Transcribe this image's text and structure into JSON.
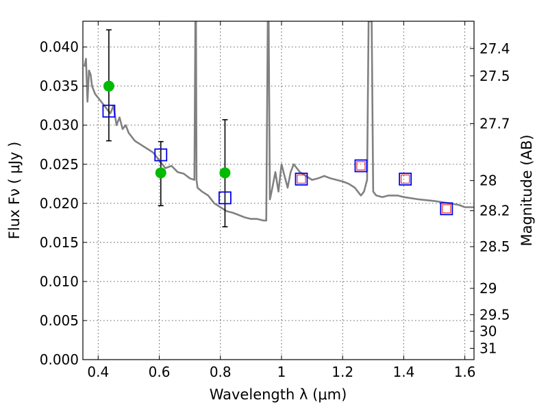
{
  "chart_data": {
    "type": "scatter",
    "title": "",
    "xlabel": "Wavelength  λ (μm)",
    "ylabel": "Flux  Fν  ( μJy )",
    "ylabel_right": "Magnitude (AB)",
    "xlim": [
      0.35,
      1.63
    ],
    "ylim": [
      0.0,
      0.0433
    ],
    "grid": true,
    "x_ticks": [
      0.4,
      0.6,
      0.8,
      1.0,
      1.2,
      1.4,
      1.6
    ],
    "x_tick_labels": [
      "0.4",
      "0.6",
      "0.8",
      "1",
      "1.2",
      "1.4",
      "1.6"
    ],
    "y_ticks": [
      0.0,
      0.005,
      0.01,
      0.015,
      0.02,
      0.025,
      0.03,
      0.035,
      0.04
    ],
    "y_tick_labels": [
      "0.000",
      "0.005",
      "0.010",
      "0.015",
      "0.020",
      "0.025",
      "0.030",
      "0.035",
      "0.040"
    ],
    "right_ticks": [
      27.4,
      27.5,
      27.7,
      28,
      28.2,
      28.5,
      29,
      29.5,
      30,
      31
    ],
    "right_tick_labels": [
      "27.4",
      "27.5",
      "27.7",
      "28",
      "28.2",
      "28.5",
      "29",
      "29.5",
      "30",
      "31"
    ],
    "colors": {
      "sed": "#808080",
      "observed": "#00bb00",
      "model_box": "#0000ee",
      "inner_box": "#ee3333",
      "errorbar": "#000000"
    },
    "series": [
      {
        "kind": "sed-line",
        "x": [
          0.355,
          0.36,
          0.365,
          0.37,
          0.375,
          0.38,
          0.39,
          0.4,
          0.41,
          0.42,
          0.43,
          0.44,
          0.45,
          0.46,
          0.47,
          0.48,
          0.49,
          0.5,
          0.52,
          0.54,
          0.56,
          0.58,
          0.6,
          0.62,
          0.64,
          0.66,
          0.68,
          0.7,
          0.715,
          0.718,
          0.72,
          0.722,
          0.725,
          0.74,
          0.76,
          0.78,
          0.8,
          0.82,
          0.84,
          0.86,
          0.88,
          0.9,
          0.92,
          0.94,
          0.95,
          0.955,
          0.958,
          0.962,
          0.965,
          0.97,
          0.98,
          0.99,
          1.0,
          1.01,
          1.02,
          1.03,
          1.04,
          1.05,
          1.06,
          1.08,
          1.1,
          1.12,
          1.14,
          1.16,
          1.18,
          1.2,
          1.22,
          1.24,
          1.26,
          1.27,
          1.28,
          1.285,
          1.29,
          1.295,
          1.3,
          1.31,
          1.33,
          1.35,
          1.38,
          1.4,
          1.45,
          1.5,
          1.55,
          1.58,
          1.6,
          1.63
        ],
        "y": [
          0.0375,
          0.0385,
          0.033,
          0.037,
          0.0365,
          0.035,
          0.034,
          0.0335,
          0.033,
          0.0325,
          0.032,
          0.0315,
          0.0325,
          0.03,
          0.031,
          0.0295,
          0.03,
          0.029,
          0.028,
          0.0275,
          0.027,
          0.0265,
          0.0255,
          0.0245,
          0.0248,
          0.024,
          0.0238,
          0.0232,
          0.023,
          0.0433,
          0.0433,
          0.023,
          0.022,
          0.0215,
          0.021,
          0.02,
          0.0195,
          0.019,
          0.0188,
          0.0185,
          0.0182,
          0.018,
          0.018,
          0.0178,
          0.0178,
          0.0433,
          0.0433,
          0.0205,
          0.021,
          0.022,
          0.024,
          0.0215,
          0.025,
          0.0235,
          0.022,
          0.024,
          0.025,
          0.0245,
          0.024,
          0.0235,
          0.023,
          0.0232,
          0.0235,
          0.0232,
          0.023,
          0.0228,
          0.0225,
          0.022,
          0.021,
          0.0215,
          0.023,
          0.0433,
          0.0433,
          0.0433,
          0.0215,
          0.021,
          0.0208,
          0.021,
          0.021,
          0.0208,
          0.0205,
          0.0203,
          0.02,
          0.0198,
          0.0195,
          0.0195
        ]
      },
      {
        "kind": "observed-points",
        "x": [
          0.435,
          0.605,
          0.815
        ],
        "y": [
          0.035,
          0.0239,
          0.0239
        ],
        "yerr_low": [
          0.028,
          0.0197,
          0.017
        ],
        "yerr_high": [
          0.0422,
          0.0279,
          0.0307
        ]
      },
      {
        "kind": "model-boxes",
        "x": [
          0.435,
          0.605,
          0.815,
          1.065,
          1.26,
          1.405,
          1.54
        ],
        "y": [
          0.0318,
          0.0262,
          0.0207,
          0.0231,
          0.0248,
          0.0231,
          0.0193
        ]
      },
      {
        "kind": "inner-boxes",
        "x": [
          1.065,
          1.26,
          1.405,
          1.54
        ],
        "y": [
          0.0231,
          0.0248,
          0.0231,
          0.0193
        ]
      }
    ]
  }
}
